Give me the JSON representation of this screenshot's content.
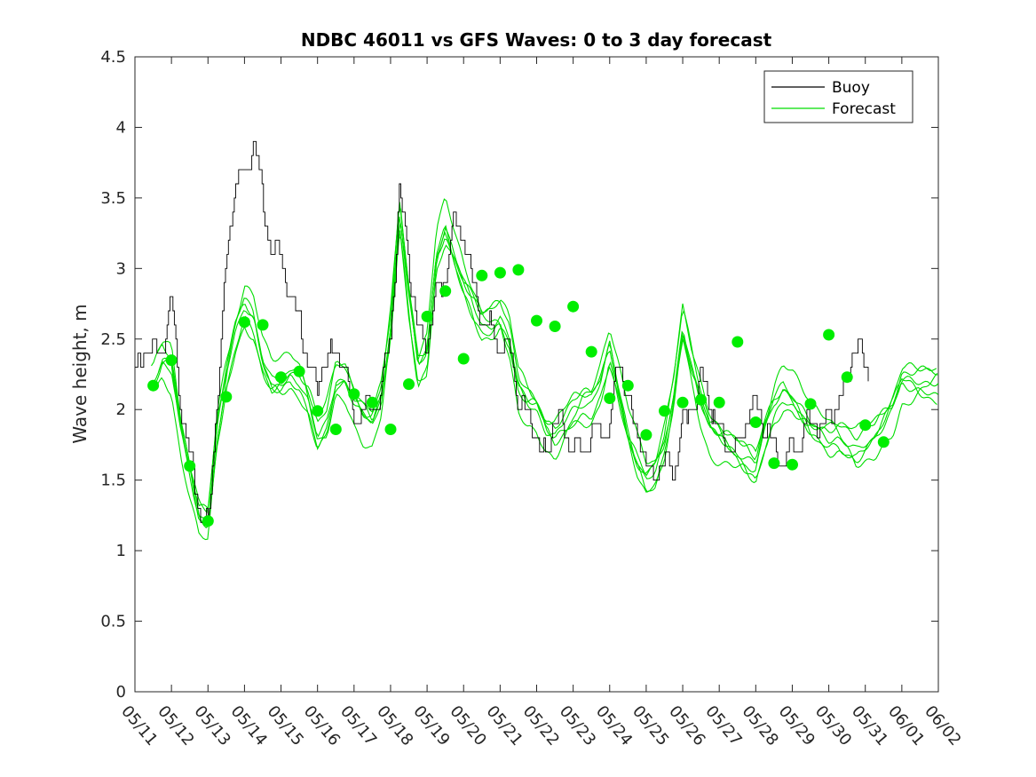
{
  "chart_data": {
    "type": "line",
    "title": "NDBC 46011 vs GFS Waves: 0 to 3 day forecast",
    "ylabel": "Wave height, m",
    "xlabel": "",
    "ylim": [
      0,
      4.5
    ],
    "xlim": [
      "05/11",
      "06/02"
    ],
    "yticks": [
      "0",
      "0.5",
      "1",
      "1.5",
      "2",
      "2.5",
      "3",
      "3.5",
      "4",
      "4.5"
    ],
    "xticks": [
      "05/11",
      "05/12",
      "05/13",
      "05/14",
      "05/15",
      "05/16",
      "05/17",
      "05/18",
      "05/19",
      "05/20",
      "05/21",
      "05/22",
      "05/23",
      "05/24",
      "05/25",
      "05/26",
      "05/27",
      "05/28",
      "05/29",
      "05/30",
      "05/31",
      "06/01",
      "06/02"
    ],
    "grid": false,
    "legend": {
      "position": "top-right",
      "entries": [
        {
          "label": "Buoy",
          "color": "#000000"
        },
        {
          "label": "Forecast",
          "color": "#00dd00"
        }
      ]
    },
    "colors": {
      "buoy": "#000000",
      "forecast": "#00dd00",
      "markers": "#00ee00"
    },
    "series": [
      {
        "name": "Buoy",
        "x_days": [
          0,
          0.25,
          0.5,
          0.75,
          1,
          1.25,
          1.5,
          1.75,
          2,
          2.25,
          2.5,
          2.75,
          3,
          3.25,
          3.5,
          3.75,
          4,
          4.25,
          4.5,
          4.75,
          5,
          5.25,
          5.5,
          5.75,
          6,
          6.25,
          6.5,
          6.75,
          7,
          7.25,
          7.5,
          7.75,
          8,
          8.25,
          8.5,
          8.75,
          9,
          9.25,
          9.5,
          9.75,
          10,
          10.25,
          10.5,
          10.75,
          11,
          11.25,
          11.5,
          11.75,
          12,
          12.25,
          12.5,
          12.75,
          13,
          13.25,
          13.5,
          13.75,
          14,
          14.25,
          14.5,
          14.75,
          15,
          15.25,
          15.5,
          15.75,
          16,
          16.25,
          16.5,
          16.75,
          17,
          17.25,
          17.5,
          17.75,
          18,
          18.25,
          18.5,
          18.75,
          19,
          19.25,
          19.5,
          19.75,
          20,
          20.25,
          20.5,
          20.75,
          21
        ],
        "values": [
          2.2,
          2.5,
          2.4,
          2.5,
          2.7,
          2.0,
          1.7,
          1.35,
          1.2,
          2.0,
          3.0,
          3.6,
          3.7,
          4.0,
          3.4,
          3.1,
          3.0,
          2.9,
          2.7,
          2.3,
          2.1,
          2.3,
          2.5,
          2.3,
          2.0,
          1.9,
          2.0,
          2.1,
          2.6,
          3.6,
          3.0,
          2.5,
          2.4,
          2.9,
          3.0,
          3.3,
          3.2,
          2.8,
          2.7,
          2.6,
          2.5,
          2.4,
          2.0,
          2.0,
          1.8,
          1.75,
          1.9,
          1.8,
          1.7,
          1.75,
          1.9,
          1.8,
          1.85,
          2.3,
          2.1,
          1.9,
          1.6,
          1.5,
          1.55,
          1.6,
          1.9,
          2.1,
          2.2,
          2.0,
          1.8,
          1.75,
          1.8,
          1.9,
          2.0,
          1.8,
          1.75,
          1.7,
          1.75,
          1.8,
          1.85,
          1.9,
          2.0,
          2.1,
          2.2,
          2.4,
          2.3,
          2.2,
          2.3,
          2.1,
          2.0
        ]
      },
      {
        "name": "Forecast",
        "x_days": [
          0,
          0.25,
          0.5,
          0.75,
          1,
          1.25,
          1.5,
          1.75,
          2,
          2.25,
          2.5,
          2.75,
          3,
          3.25,
          3.5,
          3.75,
          4,
          4.25,
          4.5,
          4.75,
          5,
          5.25,
          5.5,
          5.75,
          6,
          6.25,
          6.5,
          6.75,
          7,
          7.25,
          7.5,
          7.75,
          8,
          8.25,
          8.5,
          8.75,
          9,
          9.25,
          9.5,
          9.75,
          10,
          10.25,
          10.5,
          10.75,
          11,
          11.25,
          11.5,
          11.75,
          12,
          12.25,
          12.5,
          12.75,
          13,
          13.25,
          13.5,
          13.75,
          14,
          14.25,
          14.5,
          14.75,
          15,
          15.25,
          15.5,
          15.75,
          16,
          16.25,
          16.5,
          16.75,
          17,
          17.25,
          17.5,
          17.75,
          18,
          18.25,
          18.5,
          18.75,
          19,
          19.25,
          19.5,
          19.75,
          20,
          20.25,
          20.5,
          20.75,
          21
        ],
        "values": [
          2.15,
          2.15,
          2.2,
          2.35,
          2.3,
          1.85,
          1.55,
          1.25,
          1.2,
          1.85,
          2.25,
          2.55,
          2.75,
          2.65,
          2.35,
          2.2,
          2.2,
          2.25,
          2.2,
          2.05,
          1.8,
          1.9,
          2.2,
          2.2,
          2.05,
          1.95,
          1.9,
          2.1,
          2.6,
          3.4,
          2.8,
          2.3,
          2.4,
          3.1,
          3.3,
          3.1,
          2.9,
          2.75,
          2.6,
          2.6,
          2.65,
          2.5,
          2.15,
          2.05,
          2.0,
          1.85,
          1.8,
          1.9,
          2.0,
          2.05,
          2.05,
          2.2,
          2.45,
          2.15,
          1.85,
          1.65,
          1.5,
          1.55,
          1.75,
          2.1,
          2.6,
          2.3,
          2.05,
          1.85,
          1.8,
          1.75,
          1.7,
          1.65,
          1.6,
          1.85,
          2.05,
          2.15,
          2.1,
          2.0,
          1.9,
          1.85,
          1.8,
          1.8,
          1.75,
          1.7,
          1.75,
          1.8,
          1.9,
          2.0,
          2.2
        ]
      },
      {
        "name": "Forecast markers",
        "x_days": [
          0.5,
          1.0,
          1.5,
          2.0,
          2.5,
          3.0,
          3.5,
          4.0,
          4.5,
          5.0,
          5.5,
          6.0,
          6.5,
          7.0,
          7.5,
          8.0,
          8.5,
          9.0,
          9.5,
          10.0,
          10.5,
          11.0,
          11.5,
          12.0,
          12.5,
          13.0,
          13.5,
          14.0,
          14.5,
          15.0,
          15.5,
          16.0,
          16.5,
          17.0,
          17.5,
          18.0,
          18.5,
          19.0,
          19.5,
          20.0,
          20.5
        ],
        "values": [
          2.17,
          2.35,
          1.6,
          1.21,
          2.09,
          2.62,
          2.6,
          2.23,
          2.27,
          1.99,
          1.86,
          2.11,
          2.05,
          1.86,
          2.18,
          2.66,
          2.84,
          2.36,
          2.95,
          2.97,
          2.99,
          2.63,
          2.59,
          2.73,
          2.41,
          2.08,
          2.17,
          1.82,
          1.99,
          2.05,
          2.07,
          2.05,
          2.48,
          1.91,
          1.62,
          1.61,
          2.04,
          2.53,
          2.23,
          1.89,
          1.77
        ]
      }
    ],
    "forecast_spread": [
      0.0,
      0.12,
      -0.1,
      0.18,
      -0.15,
      0.08
    ]
  }
}
